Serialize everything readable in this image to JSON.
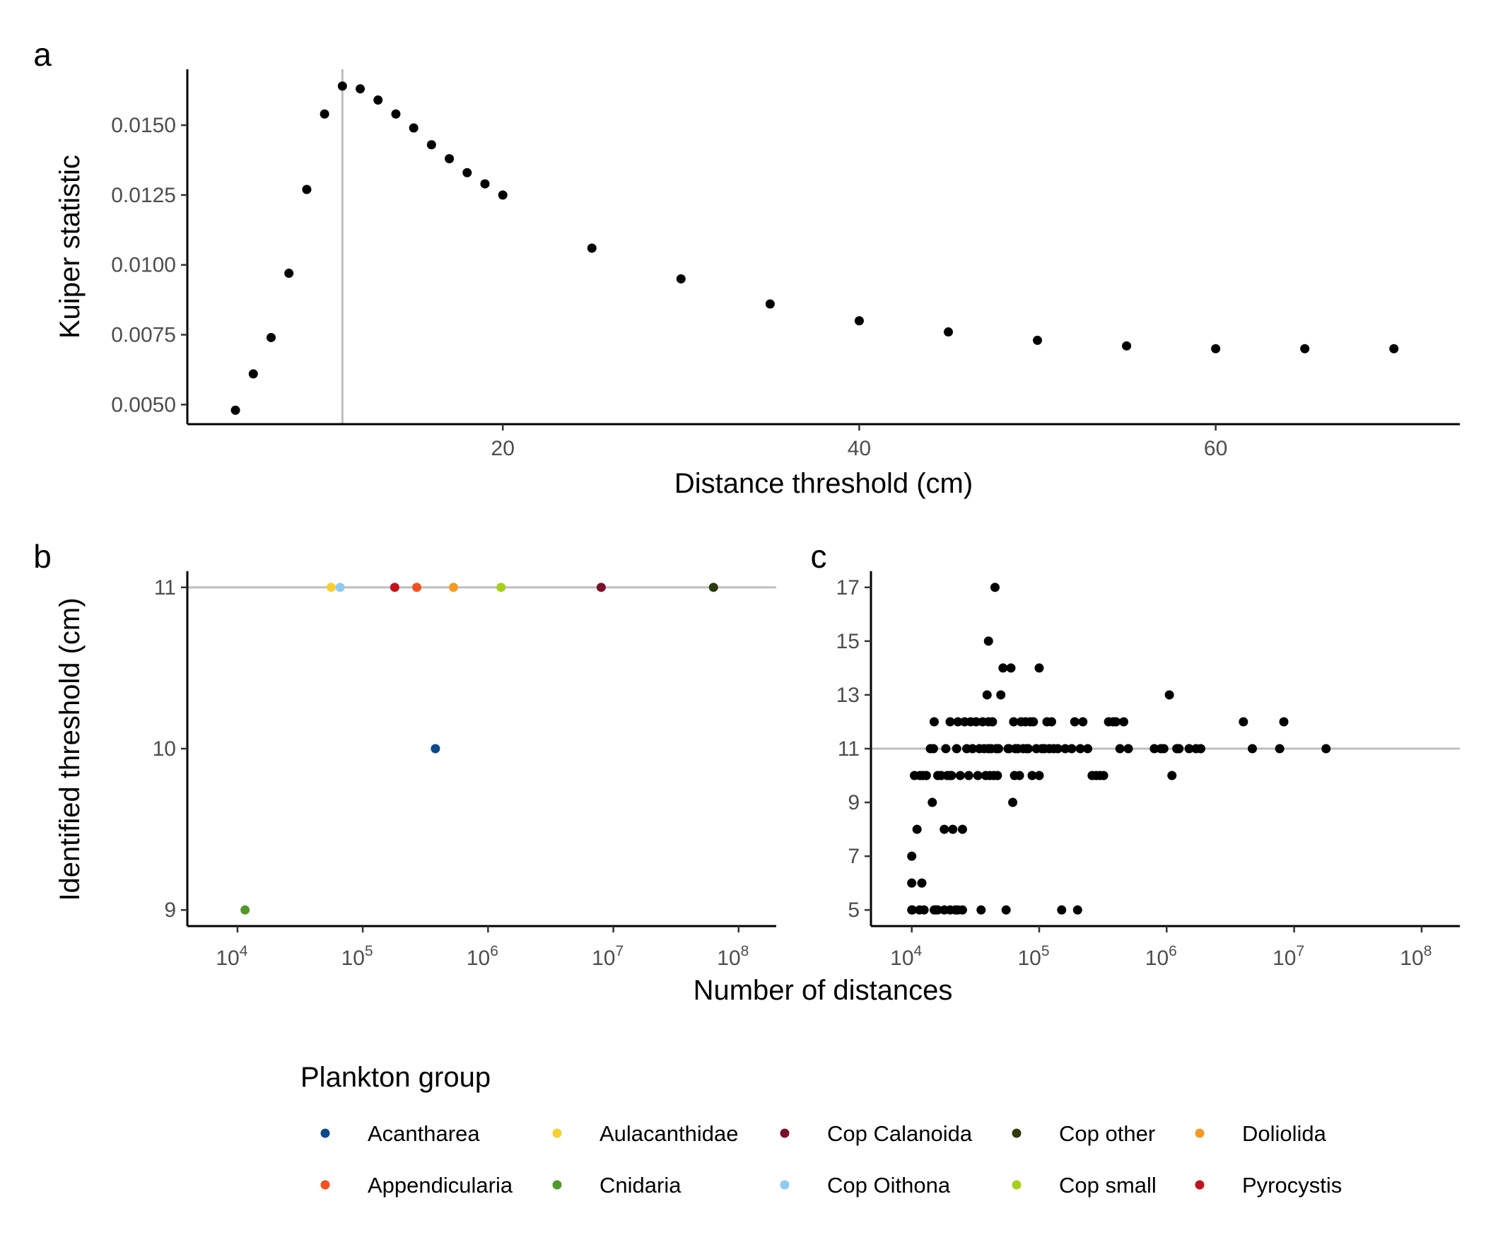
{
  "colors": {
    "point": "#000000",
    "refline": "#bebebe",
    "axis": "#000000"
  },
  "legend": {
    "title": "Plankton group",
    "items": [
      {
        "label": "Acantharea",
        "color": "#0b4a8b"
      },
      {
        "label": "Appendicularia",
        "color": "#f4511e"
      },
      {
        "label": "Aulacanthidae",
        "color": "#f7cf2e"
      },
      {
        "label": "Cnidaria",
        "color": "#4f9a2a"
      },
      {
        "label": "Cop Calanoida",
        "color": "#7b0f2e"
      },
      {
        "label": "Cop Oithona",
        "color": "#8ecaf2"
      },
      {
        "label": "Cop other",
        "color": "#2d3a0e"
      },
      {
        "label": "Cop small",
        "color": "#a6cf1a"
      },
      {
        "label": "Doliolida",
        "color": "#f59a23"
      },
      {
        "label": "Pyrocystis",
        "color": "#c3141e"
      }
    ]
  },
  "shared_xlabel": "Number of distances",
  "chart_data": [
    {
      "id": "a",
      "tag": "a",
      "type": "scatter",
      "xlabel": "Distance threshold (cm)",
      "ylabel": "Kuiper statistic",
      "xlim": [
        2.3,
        73.7
      ],
      "ylim": [
        0.0043,
        0.017
      ],
      "xticks": [
        20,
        40,
        60
      ],
      "xtick_labels": [
        "20",
        "40",
        "60"
      ],
      "yticks": [
        0.005,
        0.0075,
        0.01,
        0.0125,
        0.015
      ],
      "ytick_labels": [
        "0.0050",
        "0.0075",
        "0.0100",
        "0.0125",
        "0.0150"
      ],
      "vline": 11,
      "points": {
        "x": [
          5,
          6,
          7,
          8,
          9,
          10,
          11,
          12,
          13,
          14,
          15,
          16,
          17,
          18,
          19,
          20,
          25,
          30,
          35,
          40,
          45,
          50,
          55,
          60,
          65,
          70
        ],
        "y": [
          0.0048,
          0.0061,
          0.0074,
          0.0097,
          0.0127,
          0.0154,
          0.0164,
          0.0163,
          0.0159,
          0.0154,
          0.0149,
          0.0143,
          0.0138,
          0.0133,
          0.0129,
          0.0125,
          0.0106,
          0.0095,
          0.0086,
          0.008,
          0.0076,
          0.0073,
          0.0071,
          0.007,
          0.007,
          0.007
        ]
      }
    },
    {
      "id": "b",
      "tag": "b",
      "type": "scatter",
      "scale_x": "log10",
      "xlabel": "",
      "ylabel": "Identified threshold (cm)",
      "xlim": [
        3.6,
        8.3
      ],
      "ylim": [
        8.9,
        11.1
      ],
      "xticks": [
        4,
        5,
        6,
        7,
        8
      ],
      "xtick_base": [
        "10",
        "10",
        "10",
        "10",
        "10"
      ],
      "xtick_exp": [
        "4",
        "5",
        "6",
        "7",
        "8"
      ],
      "yticks": [
        9,
        10,
        11
      ],
      "ytick_labels": [
        "9",
        "10",
        "11"
      ],
      "hline": 11,
      "points": [
        {
          "group": "Cnidaria",
          "x": 11500,
          "y": 9
        },
        {
          "group": "Aulacanthidae",
          "x": 56000,
          "y": 11
        },
        {
          "group": "Cop Oithona",
          "x": 66000,
          "y": 11
        },
        {
          "group": "Pyrocystis",
          "x": 180000,
          "y": 11
        },
        {
          "group": "Appendicularia",
          "x": 270000,
          "y": 11
        },
        {
          "group": "Acantharea",
          "x": 380000,
          "y": 10
        },
        {
          "group": "Doliolida",
          "x": 530000,
          "y": 11
        },
        {
          "group": "Cop small",
          "x": 1270000,
          "y": 11
        },
        {
          "group": "Cop Calanoida",
          "x": 8000000,
          "y": 11
        },
        {
          "group": "Cop other",
          "x": 63000000,
          "y": 11
        }
      ]
    },
    {
      "id": "c",
      "tag": "c",
      "type": "scatter",
      "scale_x": "log10",
      "xlabel": "",
      "ylabel": "",
      "xlim": [
        3.68,
        8.3
      ],
      "ylim": [
        4.4,
        17.6
      ],
      "xticks": [
        4,
        5,
        6,
        7,
        8
      ],
      "xtick_base": [
        "10",
        "10",
        "10",
        "10",
        "10"
      ],
      "xtick_exp": [
        "4",
        "5",
        "6",
        "7",
        "8"
      ],
      "yticks": [
        5,
        7,
        9,
        11,
        13,
        15,
        17
      ],
      "ytick_labels": [
        "5",
        "7",
        "9",
        "11",
        "13",
        "15",
        "17"
      ],
      "hline": 11,
      "points": {
        "x": [
          10000,
          10000,
          10000,
          10100,
          10500,
          11000,
          11500,
          11600,
          12000,
          12200,
          12500,
          13000,
          13000,
          14000,
          14500,
          14800,
          15000,
          15000,
          15500,
          16000,
          16000,
          17000,
          18000,
          18000,
          18500,
          19000,
          20000,
          20000,
          20000,
          20500,
          21000,
          22000,
          22500,
          23000,
          23000,
          24000,
          25000,
          25000,
          26000,
          27000,
          28000,
          29000,
          30000,
          32000,
          33000,
          34000,
          35000,
          36000,
          37000,
          38000,
          39000,
          40000,
          40000,
          40000,
          41000,
          42000,
          43000,
          44000,
          45000,
          46000,
          47000,
          48000,
          50000,
          52000,
          55000,
          57000,
          58000,
          60000,
          62000,
          63000,
          64000,
          65000,
          68000,
          70000,
          72000,
          75000,
          78000,
          80000,
          82000,
          85000,
          88000,
          90000,
          95000,
          100000,
          100000,
          105000,
          110000,
          115000,
          120000,
          125000,
          130000,
          140000,
          150000,
          160000,
          180000,
          190000,
          200000,
          210000,
          220000,
          240000,
          260000,
          280000,
          300000,
          320000,
          350000,
          380000,
          400000,
          430000,
          460000,
          500000,
          800000,
          900000,
          950000,
          1050000,
          1100000,
          1200000,
          1250000,
          1500000,
          1700000,
          1850000,
          4000000,
          4700000,
          7700000,
          8300000,
          17800000
        ],
        "y": [
          7,
          6,
          5,
          5,
          10,
          8,
          5,
          10,
          6,
          10,
          5,
          10,
          10,
          11,
          9,
          11,
          5,
          12,
          5,
          10,
          5,
          10,
          8,
          5,
          11,
          10,
          5,
          10,
          12,
          10,
          8,
          5,
          11,
          12,
          5,
          10,
          8,
          5,
          12,
          11,
          10,
          12,
          11,
          12,
          10,
          11,
          5,
          12,
          11,
          10,
          13,
          15,
          12,
          11,
          10,
          11,
          12,
          10,
          17,
          11,
          10,
          11,
          13,
          14,
          5,
          11,
          11,
          14,
          9,
          12,
          10,
          11,
          11,
          10,
          12,
          11,
          12,
          11,
          11,
          12,
          10,
          12,
          11,
          14,
          10,
          11,
          11,
          12,
          11,
          12,
          11,
          11,
          5,
          11,
          11,
          12,
          5,
          11,
          12,
          11,
          10,
          10,
          10,
          10,
          12,
          12,
          12,
          11,
          12,
          11,
          11,
          11,
          11,
          13,
          10,
          11,
          11,
          11,
          11,
          11,
          12,
          11,
          11,
          12,
          11
        ]
      }
    }
  ]
}
